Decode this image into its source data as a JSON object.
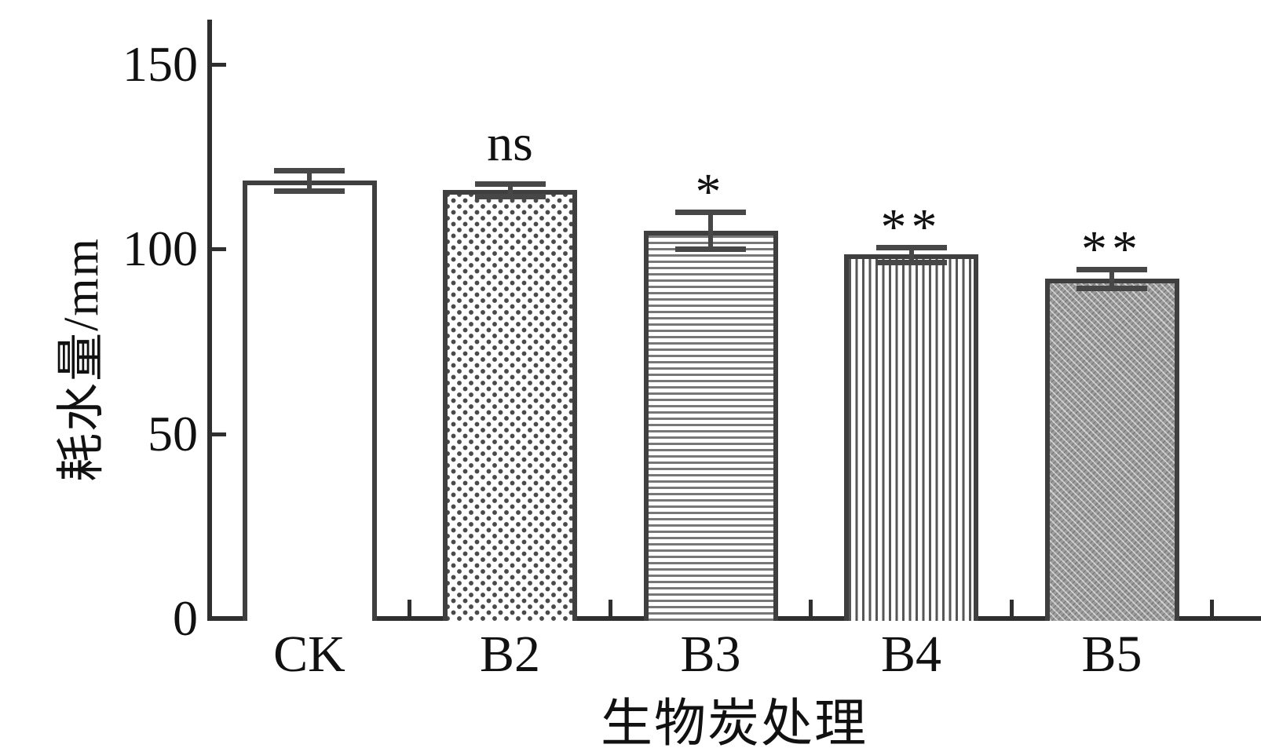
{
  "chart_data": {
    "type": "bar",
    "title": "",
    "xlabel": "生物炭处理",
    "ylabel": "耗水量/mm",
    "categories": [
      "CK",
      "B2",
      "B3",
      "B4",
      "B5"
    ],
    "values": [
      118.5,
      116,
      105,
      98.5,
      92
    ],
    "errors": [
      2.8,
      1.8,
      5,
      2.1,
      2.5
    ],
    "annotations": [
      "",
      "ns",
      "*",
      "**",
      "**"
    ],
    "bar_patterns": [
      "plain",
      "dots",
      "horizontal-lines",
      "vertical-lines",
      "diagonal-hatch"
    ],
    "yticks": [
      0,
      50,
      100,
      150
    ],
    "ylim": [
      0,
      161
    ],
    "grid": false,
    "legend": "none",
    "colors": {
      "background": "#ffffff",
      "axis": "#2f2f2f",
      "text": "#111111",
      "bar_outline": "#3f3f3f",
      "bar_fill": "#ffffff",
      "pattern_ink": "#555555",
      "diagonal_base": "#9d9d9d",
      "error_bar": "#474747"
    }
  }
}
